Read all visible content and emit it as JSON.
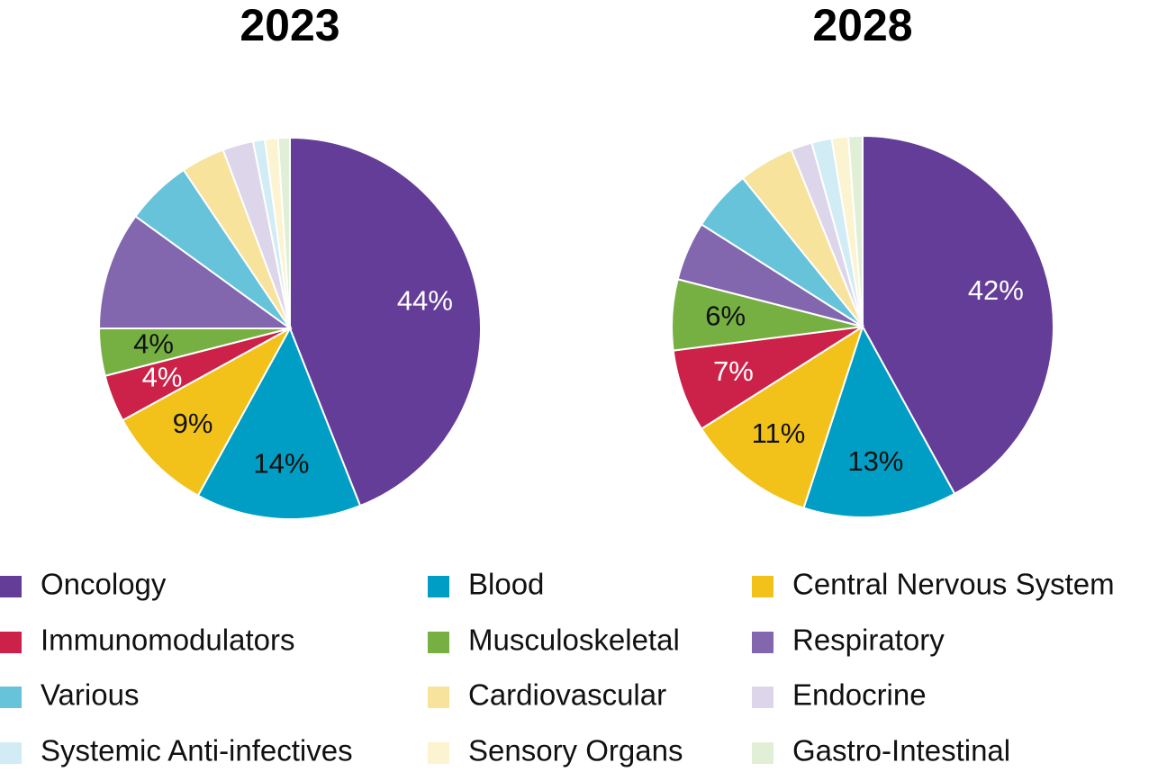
{
  "chart_data": [
    {
      "type": "pie",
      "title": "2023",
      "categories": [
        "Oncology",
        "Blood",
        "Central Nervous System",
        "Immunomodulators",
        "Musculoskeletal",
        "Respiratory",
        "Various",
        "Cardiovascular",
        "Endocrine",
        "Systemic Anti-infectives",
        "Sensory Organs",
        "Gastro-Intestinal"
      ],
      "values": [
        44,
        14,
        9,
        4,
        4,
        10,
        5.6,
        3.7,
        2.6,
        1,
        1.1,
        1
      ],
      "value_labels": [
        "44%",
        "14%",
        "9%",
        "4%",
        "4%",
        null,
        null,
        null,
        null,
        null,
        null,
        null
      ],
      "colors": [
        "#633d97",
        "#009ec4",
        "#f2c21b",
        "#cc2148",
        "#76b043",
        "#8266ae",
        "#66c3da",
        "#f7e39c",
        "#ddd6ea",
        "#d1ecf5",
        "#fcf3d0",
        "#e0efd6"
      ]
    },
    {
      "type": "pie",
      "title": "2028",
      "categories": [
        "Oncology",
        "Blood",
        "Central Nervous System",
        "Immunomodulators",
        "Musculoskeletal",
        "Respiratory",
        "Various",
        "Cardiovascular",
        "Endocrine",
        "Systemic Anti-infectives",
        "Sensory Organs",
        "Gastro-Intestinal"
      ],
      "values": [
        42,
        13,
        11,
        7,
        6,
        5,
        5.2,
        4.7,
        1.8,
        1.7,
        1.4,
        1.2
      ],
      "value_labels": [
        "42%",
        "13%",
        "11%",
        "7%",
        "6%",
        null,
        null,
        null,
        null,
        null,
        null,
        null
      ],
      "colors": [
        "#633d97",
        "#009ec4",
        "#f2c21b",
        "#cc2148",
        "#76b043",
        "#8266ae",
        "#66c3da",
        "#f7e39c",
        "#ddd6ea",
        "#d1ecf5",
        "#fcf3d0",
        "#e0efd6"
      ]
    }
  ]
}
